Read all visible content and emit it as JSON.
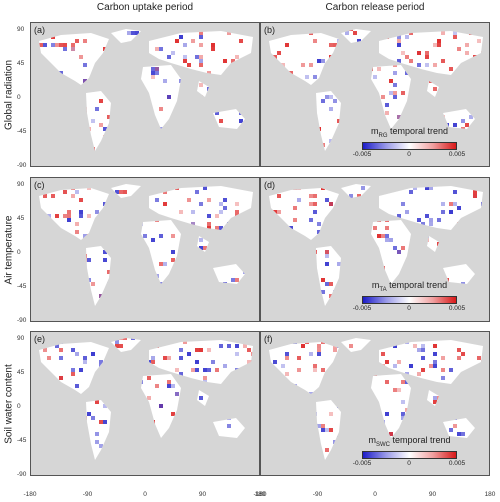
{
  "columns": [
    "Carbon uptake period",
    "Carbon release period"
  ],
  "rows": [
    {
      "label": "Global radiation",
      "legend": {
        "prefix": "m",
        "sub": "RG",
        "suffix": " temporal trend"
      }
    },
    {
      "label": "Air temperature",
      "legend": {
        "prefix": "m",
        "sub": "TA",
        "suffix": " temporal trend"
      }
    },
    {
      "label": "Soil water content",
      "legend": {
        "prefix": "m",
        "sub": "SWC",
        "suffix": " temporal trend"
      }
    }
  ],
  "panels": [
    "(a)",
    "(b)",
    "(c)",
    "(d)",
    "(e)",
    "(f)"
  ],
  "y_ticks": [
    "90",
    "45",
    "0",
    "-45",
    "-90"
  ],
  "x_ticks": [
    "-180",
    "-90",
    "0",
    "90",
    "180"
  ],
  "colorbar": {
    "min": "-0.005",
    "mid": "0",
    "max": "0.005",
    "low_color": "#1c1cc8",
    "high_color": "#d81818"
  },
  "colors": {
    "ocean": "#d6d6d6",
    "land": "#ffffff",
    "positive": "#e03030",
    "negative": "#3a3ad0"
  }
}
